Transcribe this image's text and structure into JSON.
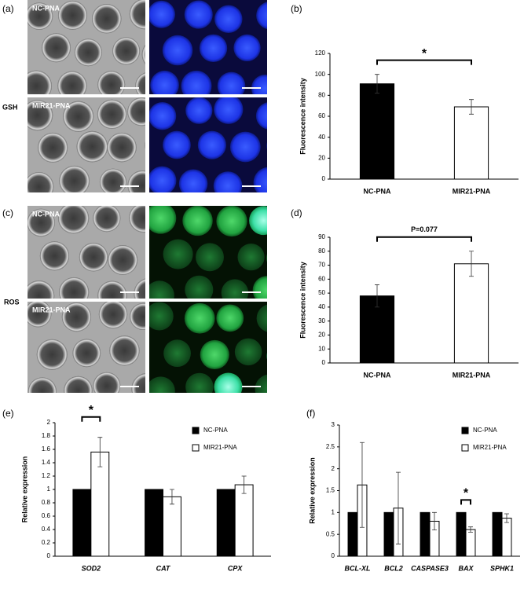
{
  "figure": {
    "a": {
      "label": "(a)",
      "side_label": "GSH",
      "tiles": [
        "NC-PNA",
        "MIR21-PNA"
      ]
    },
    "c": {
      "label": "(c)",
      "side_label": "ROS",
      "tiles": [
        "NC-PNA",
        "MIR21-PNA"
      ]
    }
  },
  "chart_data": [
    {
      "type": "bar",
      "label": "(b)",
      "y_label": "Fluorescence intensity",
      "categories": [
        "NC-PNA",
        "MIR21-PNA"
      ],
      "values": [
        91,
        69
      ],
      "errors": [
        9,
        7
      ],
      "colors": [
        "#000000",
        "#ffffff"
      ],
      "ylim": [
        0,
        120
      ],
      "yticks": [
        0,
        20,
        40,
        60,
        80,
        100,
        120
      ],
      "annotation": "*"
    },
    {
      "type": "bar",
      "label": "(d)",
      "y_label": "Fluorescence intensity",
      "categories": [
        "NC-PNA",
        "MIR21-PNA"
      ],
      "values": [
        48,
        71
      ],
      "errors": [
        8,
        9
      ],
      "colors": [
        "#000000",
        "#ffffff"
      ],
      "ylim": [
        0,
        90
      ],
      "yticks": [
        0,
        10,
        20,
        30,
        40,
        50,
        60,
        70,
        80,
        90
      ],
      "annotation": "P=0.077"
    },
    {
      "type": "grouped_bar",
      "label": "(e)",
      "y_label": "Relative expression",
      "categories": [
        "SOD2",
        "CAT",
        "CPX"
      ],
      "series": [
        {
          "name": "NC-PNA",
          "color": "#000000",
          "values": [
            1,
            1,
            1
          ]
        },
        {
          "name": "MIR21-PNA",
          "color": "#ffffff",
          "values": [
            1.56,
            0.89,
            1.07
          ],
          "errors": [
            0.22,
            0.11,
            0.13
          ]
        }
      ],
      "ylim": [
        0,
        2
      ],
      "yticks": [
        0,
        0.2,
        0.4,
        0.6,
        0.8,
        1,
        1.2,
        1.4,
        1.6,
        1.8,
        2
      ],
      "legend": "upper right",
      "annotation": "*"
    },
    {
      "type": "grouped_bar",
      "label": "(f)",
      "y_label": "Relative expression",
      "categories": [
        "BCL-XL",
        "BCL2",
        "CASPASE3",
        "BAX",
        "SPHK1"
      ],
      "series": [
        {
          "name": "NC-PNA",
          "color": "#000000",
          "values": [
            1,
            1,
            1,
            1,
            1
          ]
        },
        {
          "name": "MIR21-PNA",
          "color": "#ffffff",
          "values": [
            1.63,
            1.1,
            0.8,
            0.61,
            0.87
          ],
          "errors": [
            0.97,
            0.82,
            0.2,
            0.06,
            0.1
          ]
        }
      ],
      "ylim": [
        0,
        3
      ],
      "yticks": [
        0,
        0.5,
        1,
        1.5,
        2,
        2.5,
        3
      ],
      "legend": "upper right",
      "annotation": "*"
    }
  ]
}
